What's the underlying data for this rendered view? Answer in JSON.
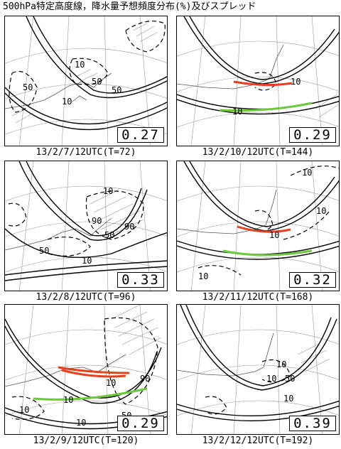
{
  "title": "500hPa特定高度線，降水量予想頻度分布(%)及びスプレッド",
  "panels": [
    {
      "caption": "13/2/7/12UTC(T=72)",
      "spread": "0.27",
      "contours": [
        "50",
        "10",
        "50",
        "50",
        "10"
      ]
    },
    {
      "caption": "13/2/8/12UTC(T=96)",
      "spread": "0.33",
      "contours": [
        "10",
        "90",
        "50",
        "90",
        "50",
        "10"
      ]
    },
    {
      "caption": "13/2/9/12UTC(T=120)",
      "spread": "0.29",
      "contours": [
        "10",
        "90",
        "10",
        "10",
        "50",
        "10"
      ]
    },
    {
      "caption": "13/2/10/12UTC(T=144)",
      "spread": "0.29",
      "contours": [
        "10",
        "10"
      ]
    },
    {
      "caption": "13/2/11/12UTC(T=168)",
      "spread": "0.32",
      "contours": [
        "10",
        "10",
        "10",
        "10"
      ]
    },
    {
      "caption": "13/2/12/12UTC(T=192)",
      "spread": "0.39",
      "contours": [
        "10",
        "10",
        "50",
        "10"
      ]
    }
  ],
  "colors": {
    "red_line": "#e8401c",
    "green_line": "#6cc83c",
    "border": "#000000"
  }
}
